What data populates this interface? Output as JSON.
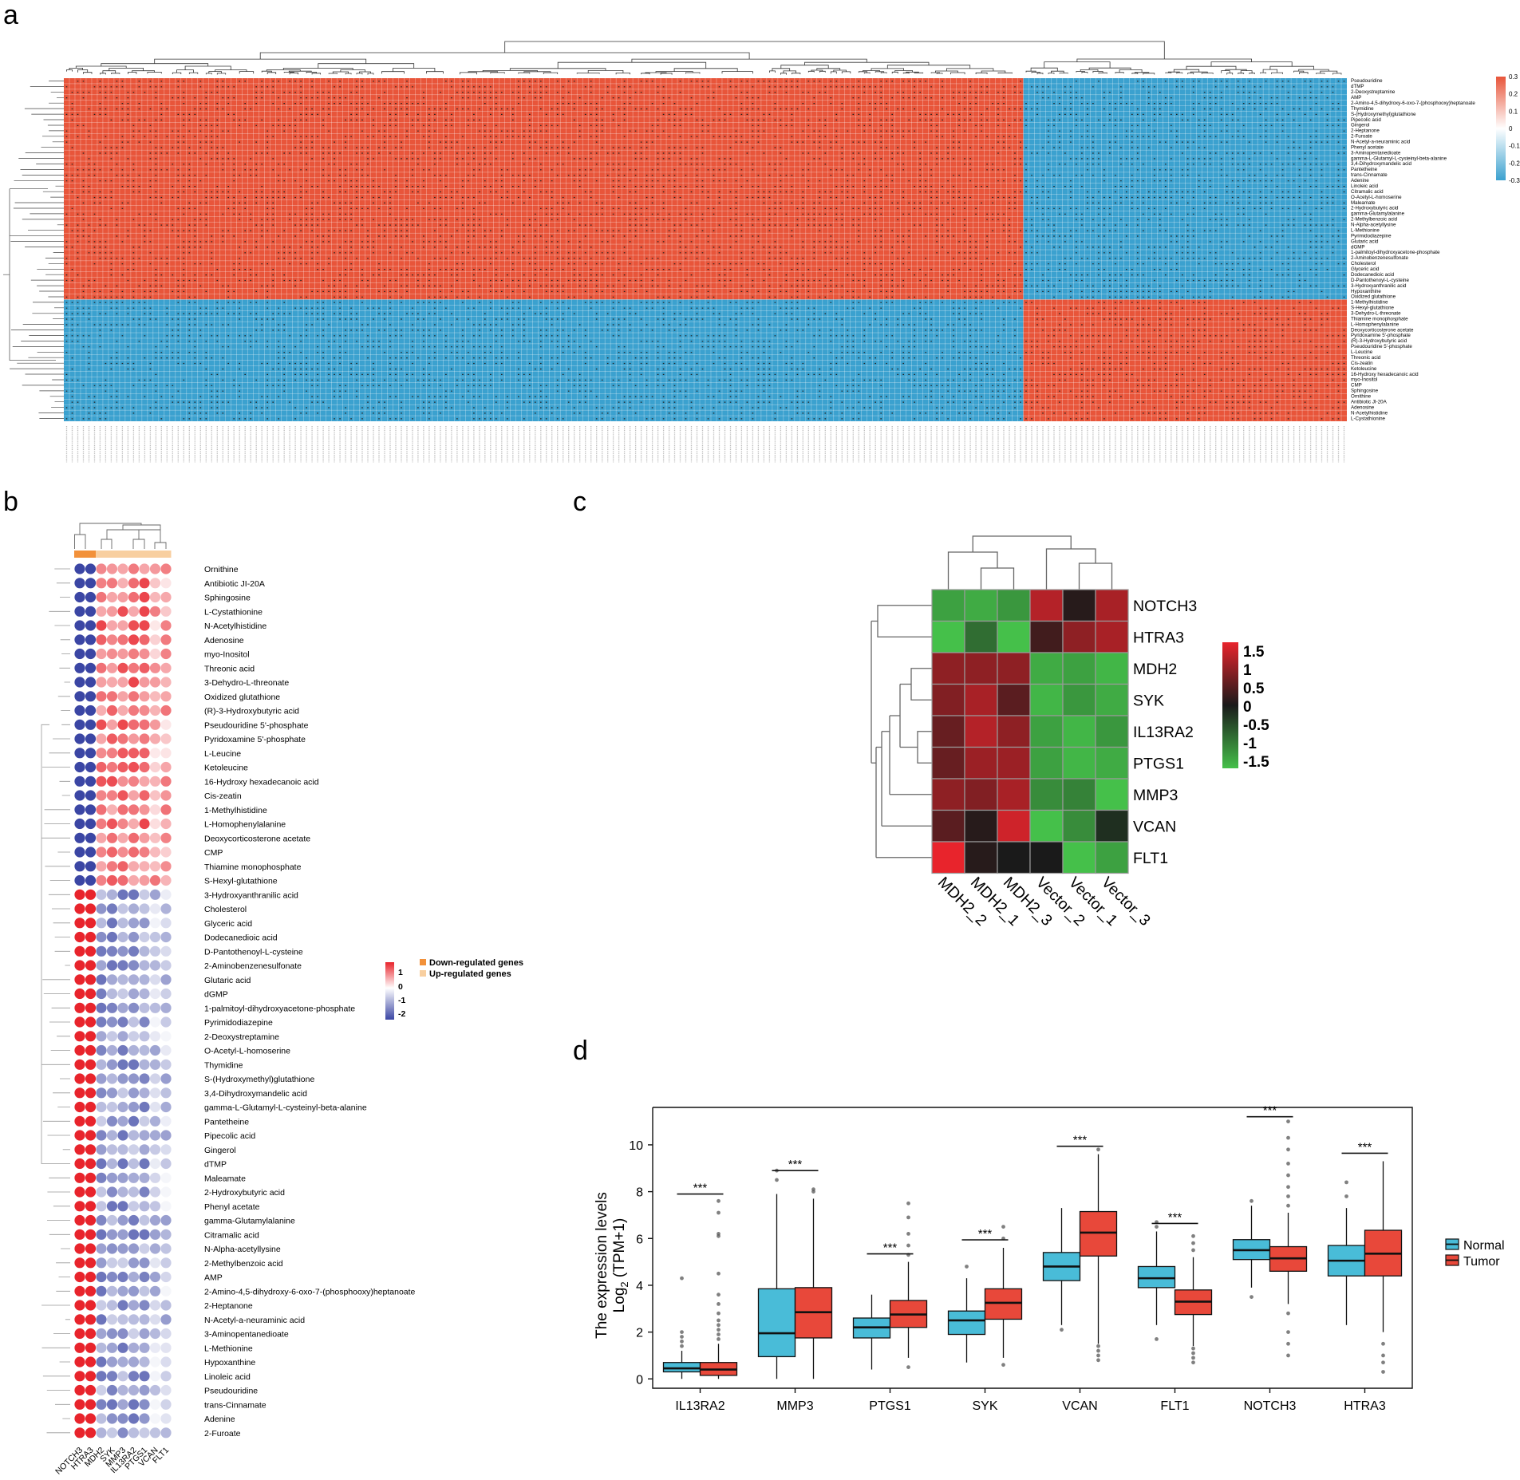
{
  "panel_letters": {
    "a": "a",
    "b": "b",
    "c": "c",
    "d": "d"
  },
  "colors": {
    "heat_red": "#e8553a",
    "heat_blue": "#3ba1cf",
    "dot_red": "#e8242c",
    "dot_blue": "#3b46a4",
    "dot_light": "#f3a0a3",
    "down_bar": "#f2913a",
    "up_bar": "#f8cfa0",
    "normal": "#49bcd8",
    "tumor": "#e8483a"
  },
  "chart_data": [
    {
      "id": "a",
      "type": "heatmap",
      "title": "",
      "row_labels": [
        "Pseudouridine",
        "dTMP",
        "2-Deoxystreptamine",
        "AMP",
        "2-Amino-4,5-dihydroxy-6-oxo-7-(phosphooxy)heptanoate",
        "Thymidine",
        "S-(Hydroxymethyl)glutathione",
        "Pipecolic acid",
        "Gingerol",
        "2-Heptanone",
        "2-Furoate",
        "N-Acetyl-a-neuraminic acid",
        "Phenyl acetate",
        "3-Aminopentanedioate",
        "gamma-L-Glutamyl-L-cysteinyl-beta-alanine",
        "3,4-Dihydroxymandelic acid",
        "Pantetheine",
        "trans-Cinnamate",
        "Adenine",
        "Linoleic acid",
        "Citramalic acid",
        "O-Acetyl-L-homoserine",
        "Maleamate",
        "2-Hydroxybutyric acid",
        "gamma-Glutamylalanine",
        "2-Methylbenzoic acid",
        "N-Alpha-acetyllysine",
        "L-Methionine",
        "Pyrimidodiazepine",
        "Glutaric acid",
        "dGMP",
        "1-palmitoyl-dihydroxyacetone-phosphate",
        "2-Aminobenzenesulfonate",
        "Cholesterol",
        "Glyceric acid",
        "Dodecanedioic acid",
        "D-Pantothenoyl-L-cysteine",
        "3-Hydroxyanthranilic acid",
        "Hypoxanthine",
        "Oxidized glutathione",
        "1-Methylhistidine",
        "S-Hexyl-glutathione",
        "3-Dehydro-L-threonate",
        "Thiamine monophosphate",
        "L-Homophenylalanine",
        "Deoxycorticosterone acetate",
        "Pyridoxamine 5'-phosphate",
        "(R)-3-Hydroxybutyric acid",
        "Pseudouridine 5'-phosphate",
        "L-Leucine",
        "Threonic acid",
        "Cis-zeatin",
        "Ketoleucine",
        "16-Hydroxy hexadecanoic acid",
        "myo-Inositol",
        "CMP",
        "Sphingosine",
        "Ornithine",
        "Antibiotic JI-20A",
        "Adenosine",
        "N-Acetylhistidine",
        "L-Cystathionine"
      ],
      "top_row_count": 40,
      "column_count": 230,
      "left_group_columns": 172,
      "legend_ticks": [
        "0.3",
        "0.2",
        "0.1",
        "0",
        "-0.1",
        "-0.2",
        "-0.3"
      ],
      "value_range": [
        -0.3,
        0.3
      ]
    },
    {
      "id": "b",
      "type": "heatmap",
      "title": "",
      "columns": [
        "NOTCH3",
        "HTRA3",
        "MDH2",
        "SYK",
        "MMP3",
        "IL13RA2",
        "PTGS1",
        "VCAN",
        "FLT1"
      ],
      "rows": [
        "Ornithine",
        "Antibiotic JI-20A",
        "Sphingosine",
        "L-Cystathionine",
        "N-Acetylhistidine",
        "Adenosine",
        "myo-Inositol",
        "Threonic acid",
        "3-Dehydro-L-threonate",
        "Oxidized glutathione",
        "(R)-3-Hydroxybutyric acid",
        "Pseudouridine 5'-phosphate",
        "Pyridoxamine 5'-phosphate",
        "L-Leucine",
        "Ketoleucine",
        "16-Hydroxy hexadecanoic acid",
        "Cis-zeatin",
        "1-Methylhistidine",
        "L-Homophenylalanine",
        "Deoxycorticosterone acetate",
        "CMP",
        "Thiamine monophosphate",
        "S-Hexyl-glutathione",
        "3-Hydroxyanthranilic acid",
        "Cholesterol",
        "Glyceric acid",
        "Dodecanedioic acid",
        "D-Pantothenoyl-L-cysteine",
        "2-Aminobenzenesulfonate",
        "Glutaric acid",
        "dGMP",
        "1-palmitoyl-dihydroxyacetone-phosphate",
        "Pyrimidodiazepine",
        "2-Deoxystreptamine",
        "O-Acetyl-L-homoserine",
        "Thymidine",
        "S-(Hydroxymethyl)glutathione",
        "3,4-Dihydroxymandelic acid",
        "gamma-L-Glutamyl-L-cysteinyl-beta-alanine",
        "Pantetheine",
        "Pipecolic acid",
        "Gingerol",
        "dTMP",
        "Maleamate",
        "2-Hydroxybutyric acid",
        "Phenyl acetate",
        "gamma-Glutamylalanine",
        "Citramalic acid",
        "N-Alpha-acetyllysine",
        "2-Methylbenzoic acid",
        "AMP",
        "2-Amino-4,5-dihydroxy-6-oxo-7-(phosphooxy)heptanoate",
        "2-Heptanone",
        "N-Acetyl-a-neuraminic acid",
        "3-Aminopentanedioate",
        "L-Methionine",
        "Hypoxanthine",
        "Linoleic acid",
        "Pseudouridine",
        "trans-Cinnamate",
        "Adenine",
        "2-Furoate"
      ],
      "top_row_count": 23,
      "column_groups": [
        "down",
        "down",
        "up",
        "up",
        "up",
        "up",
        "up",
        "up",
        "up"
      ],
      "legend": {
        "ticks": [
          "1",
          "0",
          "-1",
          "-2"
        ],
        "entries": [
          "Down-regulated genes",
          "Up-regulated genes"
        ]
      }
    },
    {
      "id": "c",
      "type": "heatmap",
      "title": "",
      "rows": [
        "NOTCH3",
        "HTRA3",
        "MDH2",
        "SYK",
        "IL13RA2",
        "PTGS1",
        "MMP3",
        "VCAN",
        "FLT1"
      ],
      "columns": [
        "MDH2_2",
        "MDH2_1",
        "MDH2_3",
        "Vector_2",
        "Vector_1",
        "Vector_3"
      ],
      "values": [
        [
          -1.3,
          -1.4,
          -1.2,
          1.2,
          0.1,
          1.1
        ],
        [
          -1.6,
          -0.8,
          -1.7,
          0.3,
          0.9,
          1.1
        ],
        [
          0.9,
          0.9,
          0.9,
          -1.4,
          -1.3,
          -1.5
        ],
        [
          0.8,
          1.1,
          0.5,
          -1.5,
          -1.2,
          -1.4
        ],
        [
          0.6,
          1.2,
          0.9,
          -1.3,
          -1.5,
          -1.2
        ],
        [
          0.6,
          1.0,
          1.0,
          -1.3,
          -1.5,
          -1.4
        ],
        [
          0.9,
          0.8,
          1.1,
          -1.1,
          -1.0,
          -1.6
        ],
        [
          0.5,
          0.1,
          1.4,
          -1.7,
          -1.1,
          -0.2
        ],
        [
          1.7,
          0.1,
          0.0,
          0.0,
          -1.6,
          -1.3
        ]
      ],
      "legend_ticks": [
        "1.5",
        "1",
        "0.5",
        "0",
        "-0.5",
        "-1",
        "-1.5"
      ],
      "value_range": [
        -1.7,
        1.7
      ]
    },
    {
      "id": "d",
      "type": "box",
      "title": "",
      "ylabel_line1": "The expression levels",
      "ylabel_line2_base": "Log",
      "ylabel_line2_sub": "2",
      "ylabel_line2_rest": " (TPM+1)",
      "categories": [
        "IL13RA2",
        "MMP3",
        "PTGS1",
        "SYK",
        "VCAN",
        "FLT1",
        "NOTCH3",
        "HTRA3"
      ],
      "yticks": [
        "0",
        "2",
        "4",
        "6",
        "8",
        "10"
      ],
      "ylim": [
        -0.4,
        11.6
      ],
      "significance": "***",
      "legend_entries": [
        "Normal",
        "Tumor"
      ],
      "series": [
        {
          "name": "Normal",
          "boxes": [
            {
              "min": 0.0,
              "q1": 0.3,
              "median": 0.45,
              "q3": 0.7,
              "max": 1.2,
              "outliers": [
                1.4,
                1.6,
                1.8,
                2.0,
                4.3
              ]
            },
            {
              "min": 0.0,
              "q1": 0.95,
              "median": 1.95,
              "q3": 3.85,
              "max": 7.9,
              "outliers": [
                8.5,
                8.9
              ]
            },
            {
              "min": 0.4,
              "q1": 1.75,
              "median": 2.2,
              "q3": 2.6,
              "max": 3.6,
              "outliers": []
            },
            {
              "min": 0.7,
              "q1": 1.9,
              "median": 2.5,
              "q3": 2.9,
              "max": 4.3,
              "outliers": [
                4.8
              ]
            },
            {
              "min": 2.3,
              "q1": 4.2,
              "median": 4.8,
              "q3": 5.4,
              "max": 7.3,
              "outliers": [
                2.1
              ]
            },
            {
              "min": 2.3,
              "q1": 3.9,
              "median": 4.3,
              "q3": 4.8,
              "max": 6.3,
              "outliers": [
                1.7,
                6.5,
                6.7
              ]
            },
            {
              "min": 3.9,
              "q1": 5.1,
              "median": 5.5,
              "q3": 5.95,
              "max": 7.4,
              "outliers": [
                3.5,
                7.6
              ]
            },
            {
              "min": 2.3,
              "q1": 4.4,
              "median": 5.05,
              "q3": 5.7,
              "max": 7.3,
              "outliers": [
                7.8,
                8.4
              ]
            }
          ]
        },
        {
          "name": "Tumor",
          "boxes": [
            {
              "min": 0.0,
              "q1": 0.15,
              "median": 0.4,
              "q3": 0.7,
              "max": 1.5,
              "outliers": [
                1.7,
                1.9,
                2.1,
                2.3,
                2.5,
                2.8,
                3.2,
                3.6,
                4.5,
                6.1,
                6.2,
                7.1,
                7.6
              ]
            },
            {
              "min": 0.0,
              "q1": 1.75,
              "median": 2.85,
              "q3": 3.9,
              "max": 7.7,
              "outliers": [
                8.0,
                8.1
              ]
            },
            {
              "min": 0.9,
              "q1": 2.2,
              "median": 2.75,
              "q3": 3.35,
              "max": 5.0,
              "outliers": [
                0.5,
                5.3,
                5.7,
                6.2,
                6.9,
                7.5
              ]
            },
            {
              "min": 0.9,
              "q1": 2.55,
              "median": 3.25,
              "q3": 3.85,
              "max": 5.6,
              "outliers": [
                0.6,
                6.0,
                6.5
              ]
            },
            {
              "min": 1.5,
              "q1": 5.25,
              "median": 6.25,
              "q3": 7.15,
              "max": 9.6,
              "outliers": [
                0.8,
                1.0,
                1.2,
                1.4,
                9.8
              ]
            },
            {
              "min": 1.4,
              "q1": 2.75,
              "median": 3.3,
              "q3": 3.8,
              "max": 5.2,
              "outliers": [
                0.7,
                0.9,
                1.1,
                1.3,
                5.5,
                5.8,
                6.1
              ]
            },
            {
              "min": 3.2,
              "q1": 4.6,
              "median": 5.15,
              "q3": 5.65,
              "max": 7.1,
              "outliers": [
                1.0,
                1.5,
                2.0,
                2.8,
                7.4,
                7.8,
                8.2,
                8.7,
                9.2,
                9.8,
                10.3,
                11.0
              ]
            },
            {
              "min": 2.0,
              "q1": 4.4,
              "median": 5.35,
              "q3": 6.35,
              "max": 9.3,
              "outliers": [
                0.3,
                0.7,
                1.0,
                1.5
              ]
            }
          ]
        }
      ]
    }
  ]
}
